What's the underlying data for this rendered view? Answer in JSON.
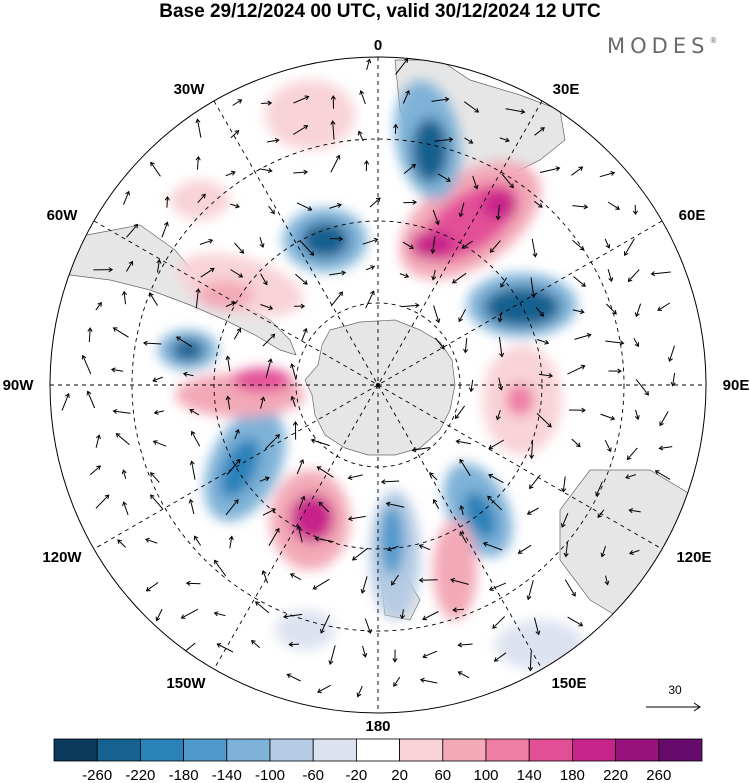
{
  "title": "Base 29/12/2024 00 UTC, valid 30/12/2024 12 UTC",
  "brand": "MODES",
  "brand_mark": "®",
  "longitude_labels": [
    "0",
    "30E",
    "60E",
    "90E",
    "120E",
    "150E",
    "180",
    "150W",
    "120W",
    "90W",
    "60W",
    "30W"
  ],
  "vector_reference": "30",
  "colorbar": {
    "ticks": [
      "-260",
      "-220",
      "-180",
      "-140",
      "-100",
      "-60",
      "-20",
      "20",
      "60",
      "100",
      "140",
      "180",
      "220",
      "260"
    ],
    "colors": [
      "#0b3a5c",
      "#15618f",
      "#2b82b9",
      "#4f9acb",
      "#7fb2d8",
      "#b5cbe4",
      "#dde2f0",
      "#ffffff",
      "#f8d3d8",
      "#f3a9b7",
      "#ee7ea4",
      "#e34f97",
      "#c8238a",
      "#9a137c",
      "#660b6b"
    ]
  },
  "colors": {
    "land": "#e6e6e6",
    "coast": "#555555",
    "arrows": "#000000"
  }
}
